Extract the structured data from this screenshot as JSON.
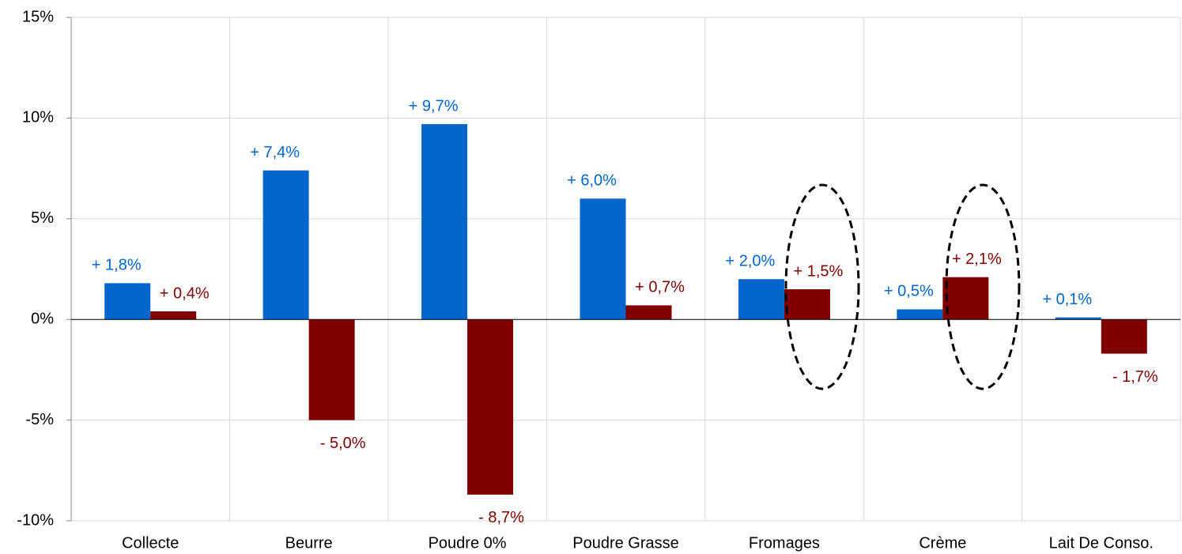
{
  "chart_data": {
    "type": "bar",
    "categories": [
      "Collecte",
      "Beurre",
      "Poudre 0%",
      "Poudre Grasse",
      "Fromages",
      "Crème",
      "Lait De Conso."
    ],
    "series": [
      {
        "color": "#0066cc",
        "values": [
          1.8,
          7.4,
          9.7,
          6.0,
          2.0,
          0.5,
          0.1
        ],
        "value_labels": [
          "+ 1,8%",
          "+ 7,4%",
          "+ 9,7%",
          "+ 6,0%",
          "+ 2,0%",
          "+ 0,5%",
          "+ 0,1%"
        ]
      },
      {
        "color": "#800000",
        "values": [
          0.4,
          -5.0,
          -8.7,
          0.7,
          1.5,
          2.1,
          -1.7
        ],
        "value_labels": [
          "+ 0,4%",
          "- 5,0%",
          "- 8,7%",
          "+ 0,7%",
          "+ 1,5%",
          "+ 2,1%",
          "- 1,7%"
        ]
      }
    ],
    "ylim": [
      -10,
      15
    ],
    "yticks": [
      {
        "value": -10,
        "label": "-10%"
      },
      {
        "value": -5,
        "label": "-5%"
      },
      {
        "value": 0,
        "label": "0%"
      },
      {
        "value": 5,
        "label": "5%"
      },
      {
        "value": 10,
        "label": "10%"
      },
      {
        "value": 15,
        "label": "15%"
      }
    ],
    "grid": true
  }
}
